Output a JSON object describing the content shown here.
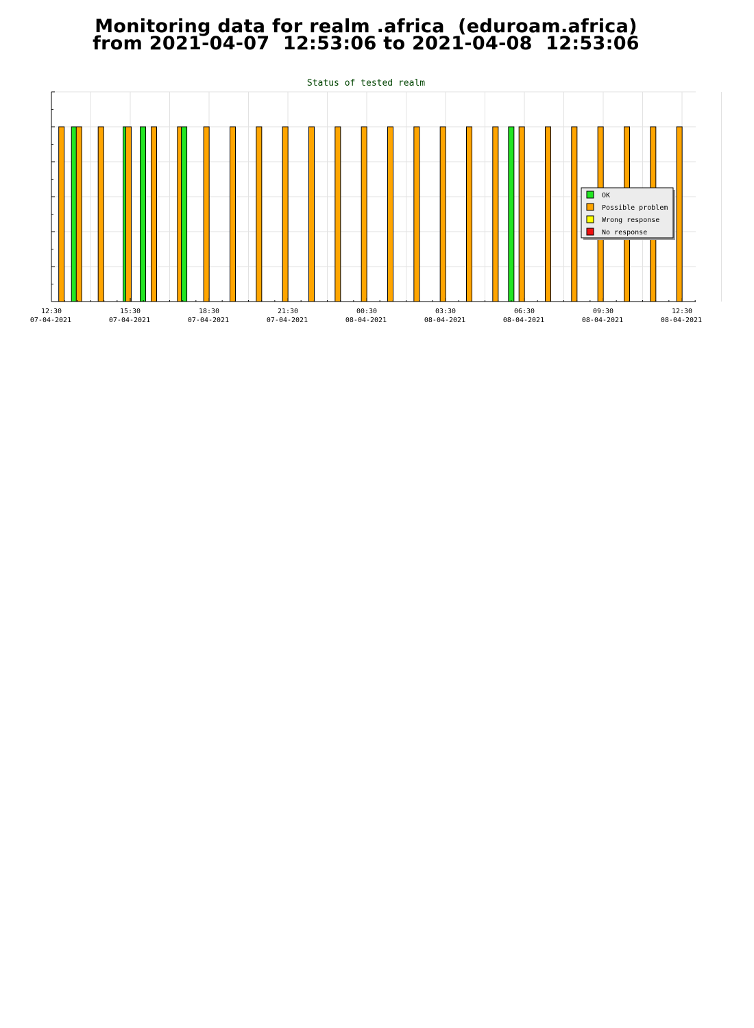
{
  "page": {
    "title_line1": "Monitoring data for realm .africa  (eduroam.africa)",
    "title_line2": "from 2021-04-07  12:53:06 to 2021-04-08  12:53:06"
  },
  "chart_data": {
    "type": "bar",
    "title": "Status of tested realm",
    "xlabel": "",
    "ylabel": "",
    "grid": true,
    "legend_position": "right",
    "x_ticks": [
      {
        "time": "12:30",
        "date": "07-04-2021"
      },
      {
        "time": "15:30",
        "date": "07-04-2021"
      },
      {
        "time": "18:30",
        "date": "07-04-2021"
      },
      {
        "time": "21:30",
        "date": "07-04-2021"
      },
      {
        "time": "00:30",
        "date": "08-04-2021"
      },
      {
        "time": "03:30",
        "date": "08-04-2021"
      },
      {
        "time": "06:30",
        "date": "08-04-2021"
      },
      {
        "time": "09:30",
        "date": "08-04-2021"
      },
      {
        "time": "12:30",
        "date": "08-04-2021"
      }
    ],
    "legend": [
      {
        "name": "OK",
        "color": "#22e622"
      },
      {
        "name": "Possible problem",
        "color": "#ffa500"
      },
      {
        "name": "Wrong response",
        "color": "#ffff00"
      },
      {
        "name": "No response",
        "color": "#ee1111"
      }
    ],
    "value_max": 6,
    "value_range": [
      0,
      6
    ],
    "bars": [
      {
        "time": "2021-04-07 12:53",
        "status": "Possible problem",
        "value": 5
      },
      {
        "time": "2021-04-07 13:22",
        "status": "OK",
        "value": 5
      },
      {
        "time": "2021-04-07 13:33",
        "status": "Possible problem",
        "value": 5
      },
      {
        "time": "2021-04-07 14:23",
        "status": "Possible problem",
        "value": 5
      },
      {
        "time": "2021-04-07 15:20",
        "status": "OK",
        "value": 5
      },
      {
        "time": "2021-04-07 15:26",
        "status": "Possible problem",
        "value": 5
      },
      {
        "time": "2021-04-07 15:59",
        "status": "OK",
        "value": 5
      },
      {
        "time": "2021-04-07 16:24",
        "status": "Possible problem",
        "value": 5
      },
      {
        "time": "2021-04-07 17:24",
        "status": "Possible problem",
        "value": 5
      },
      {
        "time": "2021-04-07 17:33",
        "status": "OK",
        "value": 5
      },
      {
        "time": "2021-04-07 18:24",
        "status": "Possible problem",
        "value": 5
      },
      {
        "time": "2021-04-07 19:24",
        "status": "Possible problem",
        "value": 5
      },
      {
        "time": "2021-04-07 20:24",
        "status": "Possible problem",
        "value": 5
      },
      {
        "time": "2021-04-07 21:24",
        "status": "Possible problem",
        "value": 5
      },
      {
        "time": "2021-04-07 22:24",
        "status": "Possible problem",
        "value": 5
      },
      {
        "time": "2021-04-07 23:24",
        "status": "Possible problem",
        "value": 5
      },
      {
        "time": "2021-04-08 00:24",
        "status": "Possible problem",
        "value": 5
      },
      {
        "time": "2021-04-08 01:24",
        "status": "Possible problem",
        "value": 5
      },
      {
        "time": "2021-04-08 02:24",
        "status": "Possible problem",
        "value": 5
      },
      {
        "time": "2021-04-08 03:24",
        "status": "Possible problem",
        "value": 5
      },
      {
        "time": "2021-04-08 04:24",
        "status": "Possible problem",
        "value": 5
      },
      {
        "time": "2021-04-08 05:24",
        "status": "Possible problem",
        "value": 5
      },
      {
        "time": "2021-04-08 06:00",
        "status": "OK",
        "value": 5
      },
      {
        "time": "2021-04-08 06:24",
        "status": "Possible problem",
        "value": 5
      },
      {
        "time": "2021-04-08 07:24",
        "status": "Possible problem",
        "value": 5
      },
      {
        "time": "2021-04-08 08:24",
        "status": "Possible problem",
        "value": 5
      },
      {
        "time": "2021-04-08 09:24",
        "status": "Possible problem",
        "value": 5
      },
      {
        "time": "2021-04-08 10:24",
        "status": "Possible problem",
        "value": 5
      },
      {
        "time": "2021-04-08 11:24",
        "status": "Possible problem",
        "value": 5
      },
      {
        "time": "2021-04-08 12:24",
        "status": "Possible problem",
        "value": 5
      }
    ]
  }
}
